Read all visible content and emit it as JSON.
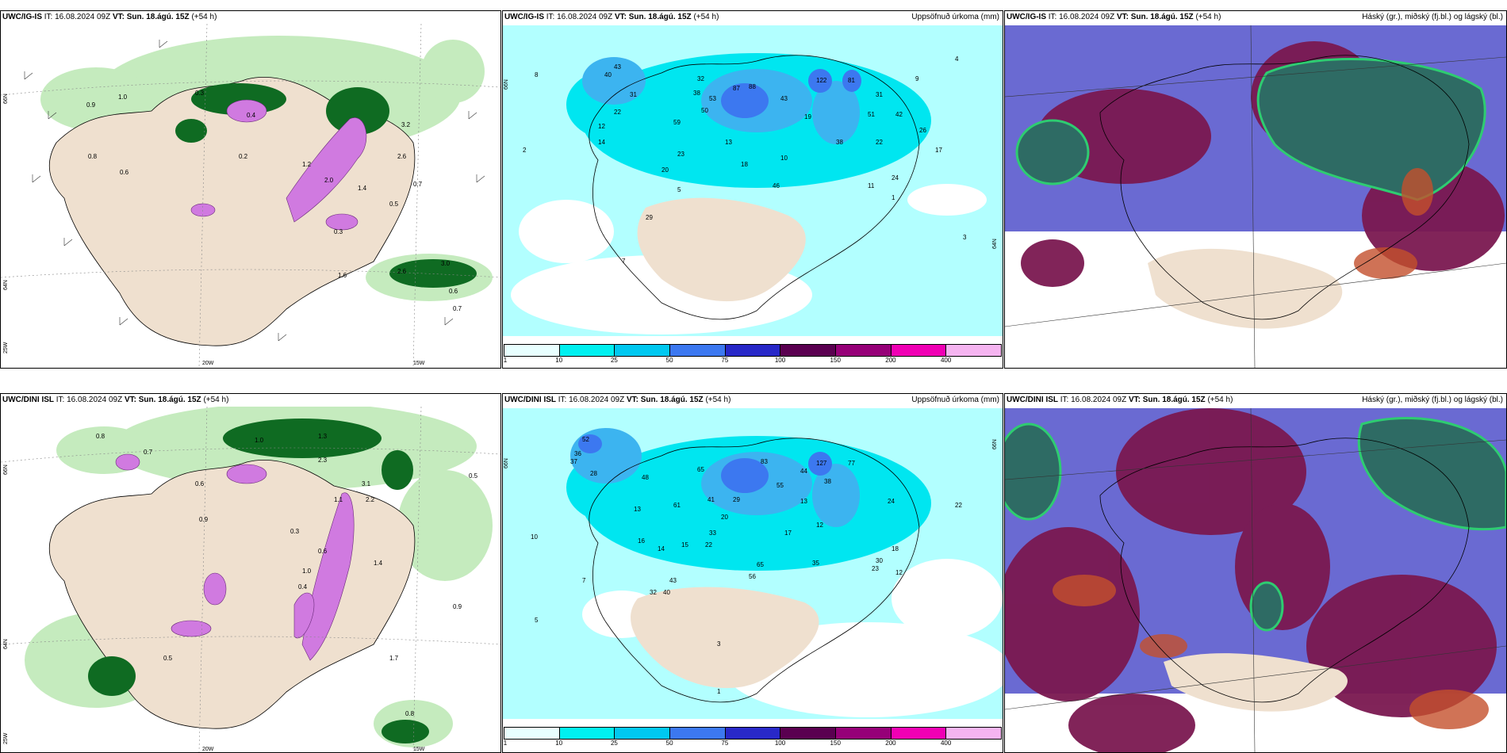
{
  "rows": [
    {
      "model": "UWC/IG-IS",
      "it_label": "IT:",
      "it_value": "16.08.2024 09Z",
      "vt_label": "VT:",
      "vt_value": "Sun. 18.ágú. 15Z",
      "lead": "(+54 h)",
      "precip_title": "Uppsöfnuð úrkoma (mm)",
      "cloud_title": "Háský (gr.), miðský (fj.bl.) og lágský (bl.)"
    },
    {
      "model": "UWC/DINI ISL",
      "it_label": "IT:",
      "it_value": "16.08.2024 09Z",
      "vt_label": "VT:",
      "vt_value": "Sun. 18.ágú. 15Z",
      "lead": "(+54 h)",
      "precip_title": "Uppsöfnuð úrkoma (mm)",
      "cloud_title": "Háský (gr.), miðský (fj.bl.) og lágský (bl.)"
    }
  ],
  "axis_labels": {
    "lat_66": "66N",
    "lat_64": "64N",
    "lon_25": "25W",
    "lon_20": "20W",
    "lon_15": "15W"
  },
  "colorbar": {
    "ticks": [
      "1",
      "10",
      "25",
      "50",
      "75",
      "100",
      "150",
      "200",
      "400"
    ],
    "colors": [
      "#e8ffff",
      "#00f0f0",
      "#00c8f0",
      "#3c78f0",
      "#2828c8",
      "#5a0050",
      "#960078",
      "#f000b4",
      "#f5b4f0"
    ]
  },
  "precip_labels": {
    "top": [
      "8",
      "43",
      "40",
      "31",
      "22",
      "12",
      "14",
      "2",
      "32",
      "38",
      "53",
      "50",
      "59",
      "87",
      "88",
      "43",
      "122",
      "81",
      "19",
      "13",
      "31",
      "9",
      "26",
      "17",
      "23",
      "38",
      "10",
      "4",
      "18",
      "20",
      "5",
      "29",
      "7",
      "1",
      "3",
      "11",
      "22",
      "46",
      "24",
      "42",
      "51"
    ],
    "bottom": [
      "52",
      "36",
      "37",
      "28",
      "13",
      "48",
      "16",
      "14",
      "65",
      "41",
      "20",
      "15",
      "43",
      "33",
      "22",
      "61",
      "29",
      "32",
      "40",
      "56",
      "83",
      "127",
      "77",
      "65",
      "35",
      "44",
      "55",
      "38",
      "13",
      "22",
      "24",
      "17",
      "12",
      "23",
      "10",
      "30",
      "12",
      "18",
      "7",
      "5",
      "3",
      "1"
    ]
  },
  "rain_labels": {
    "top": [
      "0.9",
      "1.0",
      "0.8",
      "0.6",
      "0.3",
      "1.2",
      "2.0",
      "2.6",
      "3.2",
      "0.7",
      "1.4",
      "0.5",
      "0.3",
      "0.2",
      "1.6",
      "2.6",
      "3.0",
      "0.6",
      "0.7",
      "0.4"
    ],
    "bottom": [
      "0.8",
      "0.9",
      "1.0",
      "0.5",
      "0.6",
      "0.7",
      "1.3",
      "2.3",
      "3.1",
      "2.2",
      "1.4",
      "1.1",
      "0.9",
      "0.3",
      "0.8",
      "0.4",
      "1.0",
      "0.5",
      "1.7",
      "0.6"
    ]
  }
}
